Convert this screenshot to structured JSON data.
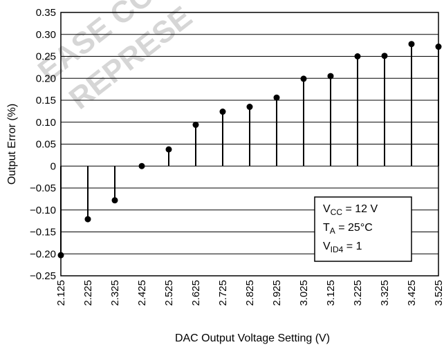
{
  "chart_data": {
    "type": "scatter",
    "style": "stem",
    "title": "",
    "xlabel": "DAC Output Voltage Setting (V)",
    "ylabel": "Output Error (%)",
    "x_ticks": [
      "2.125",
      "2.225",
      "2.325",
      "2.425",
      "2.525",
      "2.625",
      "2.725",
      "2.825",
      "2.925",
      "3.025",
      "3.125",
      "3.225",
      "3.325",
      "3.425",
      "3.525"
    ],
    "y_ticks": [
      "0.35",
      "0.30",
      "0.25",
      "0.20",
      "0.15",
      "0.10",
      "0.05",
      "0",
      "−0.05",
      "−0.10",
      "−0.15",
      "−0.20",
      "−0.25"
    ],
    "xlim": [
      2.125,
      3.525
    ],
    "ylim": [
      -0.25,
      0.35
    ],
    "grid": "horizontal",
    "x": [
      2.125,
      2.225,
      2.325,
      2.425,
      2.525,
      2.625,
      2.725,
      2.825,
      2.925,
      3.025,
      3.125,
      3.225,
      3.325,
      3.425,
      3.525
    ],
    "y": [
      -0.203,
      -0.121,
      -0.078,
      0.0,
      0.038,
      0.094,
      0.124,
      0.135,
      0.156,
      0.199,
      0.205,
      0.25,
      0.251,
      0.278,
      0.272
    ],
    "legend_position": "bottom-right",
    "conditions": [
      {
        "main": "V",
        "sub": "CC",
        "rest": " = 12 V"
      },
      {
        "main": "T",
        "sub": "A",
        "rest": " = 25°C"
      },
      {
        "main": "V",
        "sub": "ID4",
        "rest": " = 1"
      }
    ],
    "color": "#000000"
  },
  "watermark": [
    "EASE CO",
    "REPRESE"
  ]
}
